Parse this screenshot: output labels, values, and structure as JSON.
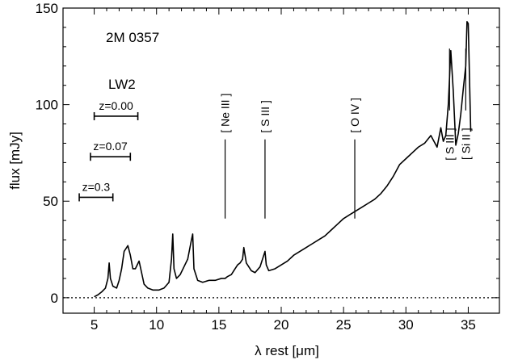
{
  "chart_data": {
    "type": "line",
    "title": "",
    "xlabel": "λ rest  [μm]",
    "ylabel": "flux [mJy]",
    "xlim": [
      2.5,
      37.5
    ],
    "ylim": [
      -8,
      150
    ],
    "xticks": [
      5,
      10,
      15,
      20,
      25,
      30,
      35
    ],
    "yticks": [
      0,
      50,
      100,
      150
    ],
    "zero_line": "dotted",
    "annotations": {
      "object": "2M 0357",
      "filter": "LW2",
      "bars": [
        {
          "label": "z=0.00",
          "x_start": 5.0,
          "x_end": 8.5,
          "y": 94
        },
        {
          "label": "z=0.07",
          "x_start": 4.7,
          "x_end": 7.9,
          "y": 73
        },
        {
          "label": "z=0.3",
          "x_start": 3.8,
          "x_end": 6.5,
          "y": 52
        }
      ],
      "lines": [
        {
          "label": "[ Ne III ]",
          "x": 15.5,
          "position": "above"
        },
        {
          "label": "[ S III ]",
          "x": 18.7,
          "position": "above"
        },
        {
          "label": "[ O IV ]",
          "x": 25.9,
          "position": "above"
        },
        {
          "label": "[ S III ]",
          "x": 33.5,
          "position": "below"
        },
        {
          "label": "[ Si II ]",
          "x": 34.8,
          "position": "below"
        }
      ]
    },
    "series": [
      {
        "x": [
          5.0,
          5.3,
          5.6,
          5.9,
          6.1,
          6.2,
          6.3,
          6.5,
          6.8,
          7.0,
          7.2,
          7.4,
          7.7,
          7.9,
          8.1,
          8.3,
          8.6,
          8.8,
          9.0,
          9.3,
          9.7,
          10.2,
          10.6,
          11.0,
          11.2,
          11.3,
          11.4,
          11.6,
          11.9,
          12.2,
          12.5,
          12.8,
          12.9,
          13.0,
          13.3,
          13.7,
          14.2,
          14.7,
          15.2,
          15.5,
          15.7,
          16.0,
          16.3,
          16.5,
          16.7,
          16.9,
          17.0,
          17.2,
          17.6,
          17.9,
          18.3,
          18.7,
          18.8,
          19.0,
          19.5,
          20.0,
          20.5,
          21.0,
          21.5,
          22.0,
          22.5,
          23.0,
          23.5,
          24.0,
          24.5,
          25.0,
          25.5,
          26.0,
          26.5,
          27.0,
          27.5,
          28.0,
          28.5,
          29.0,
          29.5,
          30.0,
          30.5,
          31.0,
          31.5,
          32.0,
          32.5,
          32.8,
          33.0,
          33.2,
          33.4,
          33.6,
          33.8,
          34.0,
          34.2,
          34.4,
          34.6,
          34.8,
          34.9,
          35.0,
          35.2
        ],
        "y": [
          0.5,
          1.5,
          3,
          5,
          10,
          18,
          10,
          6,
          5,
          9,
          15,
          24,
          27,
          22,
          15,
          15,
          19,
          13,
          7,
          5,
          4,
          4,
          5,
          8,
          20,
          33,
          15,
          10,
          12,
          16,
          20,
          30,
          33,
          15,
          9,
          8,
          9,
          9,
          10,
          10,
          11,
          12,
          15,
          17,
          18,
          20,
          26,
          18,
          14,
          13,
          16,
          24,
          17,
          14,
          15,
          17,
          19,
          22,
          24,
          26,
          28,
          30,
          32,
          35,
          38,
          41,
          43,
          45,
          47,
          49,
          51,
          54,
          58,
          63,
          69,
          72,
          75,
          78,
          80,
          84,
          78,
          88,
          81,
          84,
          100,
          128,
          107,
          79,
          85,
          95,
          108,
          120,
          143,
          142,
          86
        ]
      }
    ]
  }
}
